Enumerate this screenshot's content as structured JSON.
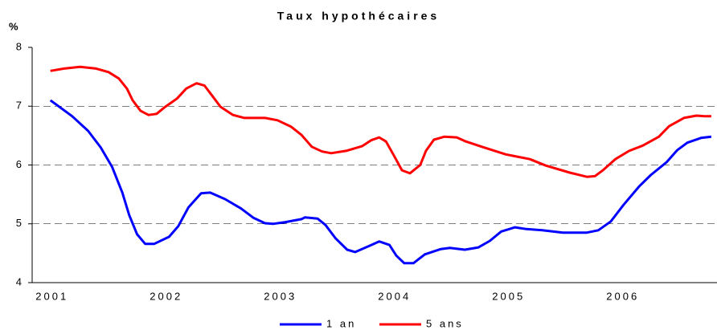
{
  "chart_data": {
    "type": "line",
    "title": "Taux hypothécaires",
    "y_label": "%",
    "xlim": [
      2000.84,
      2006.84
    ],
    "xticks": [
      2001,
      2002,
      2003,
      2004,
      2005,
      2006
    ],
    "ylim": [
      4,
      8
    ],
    "yticks": [
      4,
      5,
      6,
      7,
      8
    ],
    "grid": true,
    "legend": "bottom",
    "series": [
      {
        "name": "1 an",
        "color": "#0000ff",
        "x": [
          2001.0,
          2001.19,
          2001.33,
          2001.44,
          2001.54,
          2001.63,
          2001.69,
          2001.76,
          2001.83,
          2001.91,
          2002.04,
          2002.12,
          2002.21,
          2002.32,
          2002.4,
          2002.53,
          2002.67,
          2002.78,
          2002.88,
          2002.95,
          2003.06,
          2003.2,
          2003.23,
          2003.34,
          2003.41,
          2003.5,
          2003.6,
          2003.67,
          2003.8,
          2003.88,
          2003.97,
          2004.03,
          2004.1,
          2004.18,
          2004.28,
          2004.42,
          2004.5,
          2004.63,
          2004.75,
          2004.85,
          2004.95,
          2005.07,
          2005.17,
          2005.31,
          2005.49,
          2005.7,
          2005.8,
          2005.91,
          2006.02,
          2006.16,
          2006.26,
          2006.4,
          2006.49,
          2006.58,
          2006.7,
          2006.79
        ],
        "values": [
          7.1,
          6.83,
          6.58,
          6.3,
          5.97,
          5.53,
          5.15,
          4.82,
          4.66,
          4.66,
          4.78,
          4.96,
          5.28,
          5.52,
          5.53,
          5.42,
          5.26,
          5.1,
          5.01,
          5.0,
          5.03,
          5.08,
          5.11,
          5.09,
          4.98,
          4.75,
          4.56,
          4.52,
          4.63,
          4.7,
          4.64,
          4.46,
          4.33,
          4.33,
          4.48,
          4.57,
          4.59,
          4.56,
          4.6,
          4.71,
          4.87,
          4.94,
          4.91,
          4.89,
          4.85,
          4.85,
          4.89,
          5.04,
          5.32,
          5.64,
          5.83,
          6.05,
          6.25,
          6.38,
          6.46,
          6.48
        ]
      },
      {
        "name": "5 ans",
        "color": "#ff0000",
        "x": [
          2001.0,
          2001.12,
          2001.26,
          2001.4,
          2001.51,
          2001.6,
          2001.67,
          2001.72,
          2001.79,
          2001.86,
          2001.93,
          2002.0,
          2002.11,
          2002.19,
          2002.28,
          2002.35,
          2002.42,
          2002.49,
          2002.6,
          2002.7,
          2002.88,
          2002.99,
          2003.11,
          2003.2,
          2003.29,
          2003.38,
          2003.46,
          2003.59,
          2003.73,
          2003.81,
          2003.88,
          2003.94,
          2004.01,
          2004.08,
          2004.15,
          2004.24,
          2004.29,
          2004.36,
          2004.45,
          2004.56,
          2004.64,
          2004.78,
          2004.99,
          2005.2,
          2005.34,
          2005.55,
          2005.7,
          2005.77,
          2005.84,
          2005.95,
          2006.07,
          2006.19,
          2006.33,
          2006.42,
          2006.55,
          2006.66,
          2006.73,
          2006.79
        ],
        "values": [
          7.6,
          7.64,
          7.67,
          7.64,
          7.58,
          7.47,
          7.3,
          7.1,
          6.92,
          6.85,
          6.87,
          6.98,
          7.13,
          7.3,
          7.39,
          7.35,
          7.17,
          6.99,
          6.85,
          6.8,
          6.8,
          6.76,
          6.65,
          6.51,
          6.31,
          6.23,
          6.2,
          6.24,
          6.32,
          6.42,
          6.47,
          6.4,
          6.16,
          5.91,
          5.86,
          6.0,
          6.24,
          6.43,
          6.48,
          6.47,
          6.4,
          6.31,
          6.18,
          6.1,
          5.99,
          5.87,
          5.8,
          5.81,
          5.91,
          6.1,
          6.24,
          6.33,
          6.48,
          6.66,
          6.8,
          6.84,
          6.83,
          6.83
        ]
      }
    ]
  }
}
